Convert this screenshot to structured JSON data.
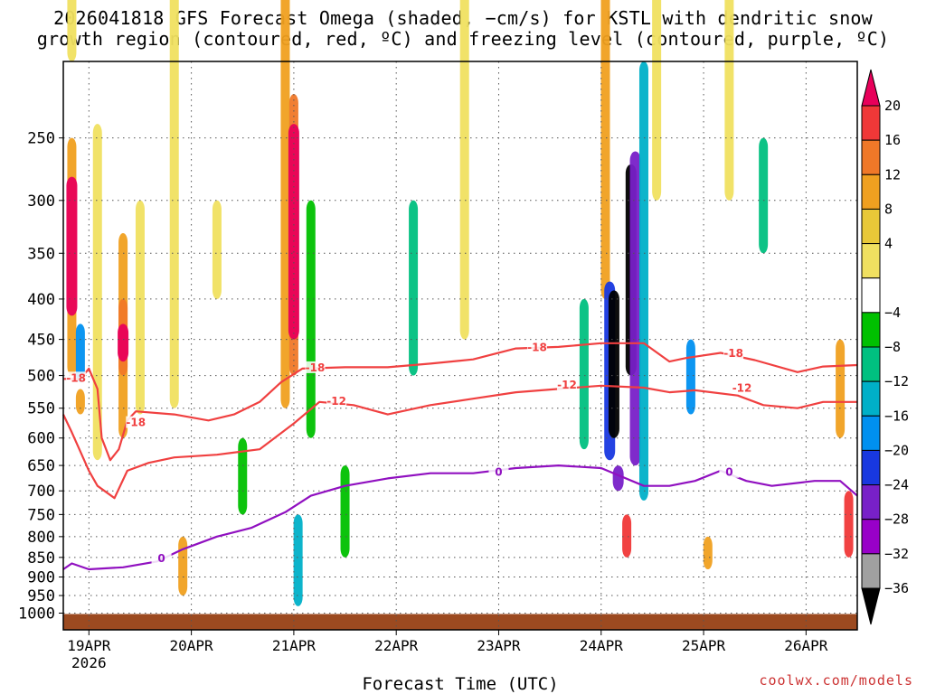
{
  "title_line1": "2026041818 GFS Forecast Omega (shaded, −cm/s) for KSTL with dendritic snow",
  "title_line2": "growth region (contoured, red, ºC) and freezing level (contoured, purple, ºC)",
  "credit": "coolwx.com/models",
  "chart_data": {
    "type": "heatmap",
    "title": "2026041818 GFS Forecast Omega (shaded, −cm/s) for KSTL",
    "xlabel": "Forecast Time (UTC)",
    "ylabel": "",
    "x_range_hours": [
      -6,
      180
    ],
    "x_ticks": [
      {
        "label": "19APR",
        "hours": 0
      },
      {
        "label": "20APR",
        "hours": 24
      },
      {
        "label": "21APR",
        "hours": 48
      },
      {
        "label": "22APR",
        "hours": 72
      },
      {
        "label": "23APR",
        "hours": 96
      },
      {
        "label": "24APR",
        "hours": 120
      },
      {
        "label": "25APR",
        "hours": 144
      },
      {
        "label": "26APR",
        "hours": 168
      }
    ],
    "x_year_label": "2026",
    "y_range_hpa": [
      200,
      1050
    ],
    "y_ticks": [
      250,
      300,
      350,
      400,
      450,
      500,
      550,
      600,
      650,
      700,
      750,
      800,
      850,
      900,
      950,
      1000
    ],
    "colorbar": {
      "labels": [
        "20",
        "16",
        "12",
        "8",
        "4",
        "−4",
        "−8",
        "−12",
        "−16",
        "−20",
        "−24",
        "−28",
        "−32",
        "−36"
      ],
      "colors": [
        "#e8005a",
        "#f03838",
        "#f07828",
        "#f0a020",
        "#e8c838",
        "#f0e060",
        "#ffffff",
        "#00c000",
        "#00c080",
        "#00b0c8",
        "#0090f0",
        "#1838e0",
        "#7820c8",
        "#9800c8",
        "#a0a0a0",
        "#000000"
      ]
    },
    "shaded_cells": [
      {
        "t": -4,
        "p0": 150,
        "p1": 200,
        "v": 6
      },
      {
        "t": -4,
        "p0": 250,
        "p1": 500,
        "v": 10
      },
      {
        "t": -4,
        "p0": 280,
        "p1": 420,
        "v": 20
      },
      {
        "t": -2,
        "p0": 430,
        "p1": 510,
        "v": -16
      },
      {
        "t": -2,
        "p0": 520,
        "p1": 560,
        "v": 8
      },
      {
        "t": 2,
        "p0": 240,
        "p1": 640,
        "v": 6
      },
      {
        "t": 8,
        "p0": 330,
        "p1": 600,
        "v": 10
      },
      {
        "t": 8,
        "p0": 400,
        "p1": 500,
        "v": 14
      },
      {
        "t": 8,
        "p0": 430,
        "p1": 480,
        "v": 20
      },
      {
        "t": 12,
        "p0": 300,
        "p1": 560,
        "v": 6
      },
      {
        "t": 20,
        "p0": 150,
        "p1": 550,
        "v": 6
      },
      {
        "t": 22,
        "p0": 800,
        "p1": 950,
        "v": 8
      },
      {
        "t": 30,
        "p0": 300,
        "p1": 400,
        "v": 6
      },
      {
        "t": 36,
        "p0": 600,
        "p1": 750,
        "v": -6
      },
      {
        "t": 46,
        "p0": 150,
        "p1": 550,
        "v": 8
      },
      {
        "t": 48,
        "p0": 220,
        "p1": 500,
        "v": 14
      },
      {
        "t": 48,
        "p0": 240,
        "p1": 450,
        "v": 20
      },
      {
        "t": 49,
        "p0": 750,
        "p1": 980,
        "v": -12
      },
      {
        "t": 52,
        "p0": 300,
        "p1": 600,
        "v": -6
      },
      {
        "t": 60,
        "p0": 650,
        "p1": 850,
        "v": -6
      },
      {
        "t": 76,
        "p0": 300,
        "p1": 500,
        "v": -8
      },
      {
        "t": 88,
        "p0": 150,
        "p1": 450,
        "v": 6
      },
      {
        "t": 116,
        "p0": 400,
        "p1": 620,
        "v": -8
      },
      {
        "t": 121,
        "p0": 150,
        "p1": 400,
        "v": 10
      },
      {
        "t": 122,
        "p0": 380,
        "p1": 640,
        "v": -20
      },
      {
        "t": 123,
        "p0": 390,
        "p1": 600,
        "v": -36
      },
      {
        "t": 124,
        "p0": 650,
        "p1": 700,
        "v": -24
      },
      {
        "t": 127,
        "p0": 270,
        "p1": 500,
        "v": -36
      },
      {
        "t": 128,
        "p0": 260,
        "p1": 650,
        "v": -24
      },
      {
        "t": 126,
        "p0": 750,
        "p1": 850,
        "v": 16
      },
      {
        "t": 130,
        "p0": 200,
        "p1": 720,
        "v": -12
      },
      {
        "t": 133,
        "p0": 150,
        "p1": 300,
        "v": 6
      },
      {
        "t": 141,
        "p0": 450,
        "p1": 560,
        "v": -16
      },
      {
        "t": 145,
        "p0": 800,
        "p1": 880,
        "v": 10
      },
      {
        "t": 150,
        "p0": 150,
        "p1": 300,
        "v": 4
      },
      {
        "t": 158,
        "p0": 250,
        "p1": 350,
        "v": -8
      },
      {
        "t": 176,
        "p0": 450,
        "p1": 600,
        "v": 8
      },
      {
        "t": 178,
        "p0": 700,
        "p1": 850,
        "v": 16
      }
    ],
    "series": [
      {
        "name": "-18",
        "color": "#f04040",
        "label_positions": [
          {
            "t": -3,
            "p": 505
          },
          {
            "t": 11,
            "p": 575
          },
          {
            "t": 53,
            "p": 490
          },
          {
            "t": 105,
            "p": 462
          },
          {
            "t": 151,
            "p": 470
          }
        ],
        "points": [
          [
            -6,
            505
          ],
          [
            -2,
            505
          ],
          [
            0,
            490
          ],
          [
            2,
            520
          ],
          [
            3,
            600
          ],
          [
            5,
            640
          ],
          [
            7,
            620
          ],
          [
            9,
            570
          ],
          [
            11,
            555
          ],
          [
            20,
            560
          ],
          [
            28,
            570
          ],
          [
            34,
            560
          ],
          [
            40,
            540
          ],
          [
            45,
            510
          ],
          [
            50,
            490
          ],
          [
            60,
            488
          ],
          [
            70,
            488
          ],
          [
            80,
            483
          ],
          [
            90,
            477
          ],
          [
            100,
            462
          ],
          [
            110,
            460
          ],
          [
            120,
            455
          ],
          [
            130,
            455
          ],
          [
            136,
            480
          ],
          [
            140,
            475
          ],
          [
            148,
            468
          ],
          [
            156,
            478
          ],
          [
            166,
            495
          ],
          [
            172,
            487
          ],
          [
            180,
            485
          ]
        ]
      },
      {
        "name": "-12",
        "color": "#f04040",
        "label_positions": [
          {
            "t": 58,
            "p": 540
          },
          {
            "t": 112,
            "p": 515
          },
          {
            "t": 153,
            "p": 520
          }
        ],
        "points": [
          [
            -6,
            560
          ],
          [
            -4,
            590
          ],
          [
            0,
            660
          ],
          [
            2,
            690
          ],
          [
            6,
            715
          ],
          [
            9,
            660
          ],
          [
            14,
            645
          ],
          [
            20,
            635
          ],
          [
            30,
            630
          ],
          [
            40,
            620
          ],
          [
            48,
            575
          ],
          [
            54,
            540
          ],
          [
            62,
            545
          ],
          [
            70,
            560
          ],
          [
            80,
            545
          ],
          [
            90,
            535
          ],
          [
            100,
            525
          ],
          [
            110,
            520
          ],
          [
            120,
            515
          ],
          [
            130,
            518
          ],
          [
            136,
            525
          ],
          [
            142,
            522
          ],
          [
            152,
            530
          ],
          [
            158,
            545
          ],
          [
            166,
            550
          ],
          [
            172,
            540
          ],
          [
            180,
            540
          ]
        ]
      },
      {
        "name": "0",
        "color": "#9010c0",
        "label_positions": [
          {
            "t": 17,
            "p": 855
          },
          {
            "t": 96,
            "p": 665
          },
          {
            "t": 150,
            "p": 665
          }
        ],
        "points": [
          [
            -6,
            880
          ],
          [
            -4,
            865
          ],
          [
            0,
            880
          ],
          [
            8,
            875
          ],
          [
            16,
            860
          ],
          [
            22,
            830
          ],
          [
            30,
            800
          ],
          [
            38,
            780
          ],
          [
            46,
            745
          ],
          [
            52,
            710
          ],
          [
            60,
            690
          ],
          [
            70,
            675
          ],
          [
            80,
            665
          ],
          [
            90,
            665
          ],
          [
            100,
            655
          ],
          [
            110,
            650
          ],
          [
            120,
            655
          ],
          [
            130,
            690
          ],
          [
            136,
            690
          ],
          [
            142,
            680
          ],
          [
            148,
            660
          ],
          [
            154,
            680
          ],
          [
            160,
            690
          ],
          [
            170,
            680
          ],
          [
            176,
            680
          ],
          [
            180,
            710
          ]
        ]
      }
    ]
  }
}
